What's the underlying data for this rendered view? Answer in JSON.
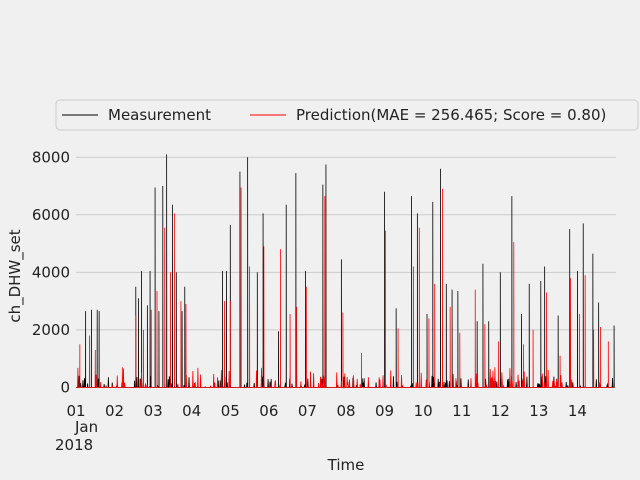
{
  "chart_data": {
    "type": "line",
    "xlabel": "Time",
    "ylabel": "ch_DHW_set",
    "x_tick_labels": [
      "01",
      "02",
      "03",
      "04",
      "05",
      "06",
      "07",
      "08",
      "09",
      "10",
      "11",
      "12",
      "13",
      "14"
    ],
    "x_tick_sublabel_month": "Jan",
    "x_tick_sublabel_year": "2018",
    "x_range_days": [
      1,
      14.95
    ],
    "y_ticks": [
      0,
      2000,
      4000,
      6000,
      8000
    ],
    "ylim": [
      -300,
      8600
    ],
    "grid": true,
    "legend_position": "top",
    "series": [
      {
        "name": "Measurement",
        "color": "#000000",
        "points": [
          [
            1.25,
            2650
          ],
          [
            1.4,
            2700
          ],
          [
            1.55,
            2700
          ],
          [
            1.6,
            2650
          ],
          [
            2.55,
            3500
          ],
          [
            2.62,
            3100
          ],
          [
            2.7,
            4050
          ],
          [
            2.85,
            2850
          ],
          [
            2.92,
            4050
          ],
          [
            3.05,
            6950
          ],
          [
            3.15,
            2650
          ],
          [
            3.25,
            7000
          ],
          [
            3.35,
            8100
          ],
          [
            3.5,
            6350
          ],
          [
            3.6,
            4000
          ],
          [
            3.75,
            2650
          ],
          [
            3.82,
            3500
          ],
          [
            4.8,
            4050
          ],
          [
            4.9,
            4050
          ],
          [
            5.0,
            5650
          ],
          [
            5.25,
            7500
          ],
          [
            5.45,
            8000
          ],
          [
            5.7,
            4000
          ],
          [
            5.85,
            6050
          ],
          [
            6.25,
            1950
          ],
          [
            6.45,
            6350
          ],
          [
            6.7,
            7450
          ],
          [
            6.95,
            4050
          ],
          [
            7.4,
            7050
          ],
          [
            7.48,
            7750
          ],
          [
            7.88,
            4450
          ],
          [
            9.0,
            6800
          ],
          [
            9.3,
            2750
          ],
          [
            9.7,
            6650
          ],
          [
            9.85,
            6050
          ],
          [
            10.1,
            2550
          ],
          [
            10.25,
            6450
          ],
          [
            10.45,
            7600
          ],
          [
            10.6,
            3600
          ],
          [
            10.75,
            3400
          ],
          [
            10.9,
            3350
          ],
          [
            11.4,
            2300
          ],
          [
            11.55,
            4300
          ],
          [
            11.7,
            2300
          ],
          [
            12.0,
            4000
          ],
          [
            12.3,
            6650
          ],
          [
            12.55,
            2550
          ],
          [
            12.75,
            3600
          ],
          [
            13.05,
            3700
          ],
          [
            13.15,
            4200
          ],
          [
            13.5,
            2500
          ],
          [
            13.8,
            5500
          ],
          [
            14.0,
            4050
          ],
          [
            14.15,
            5700
          ],
          [
            14.4,
            4650
          ],
          [
            14.55,
            2950
          ],
          [
            14.95,
            2150
          ]
        ]
      },
      {
        "name": "Prediction(MAE = 256.465; Score = 0.80)",
        "color": "#ff0000",
        "points": [
          [
            1.1,
            1500
          ],
          [
            1.35,
            1800
          ],
          [
            1.5,
            1300
          ],
          [
            2.2,
            700
          ],
          [
            2.55,
            2500
          ],
          [
            2.75,
            2000
          ],
          [
            2.95,
            2700
          ],
          [
            3.1,
            3350
          ],
          [
            3.3,
            5550
          ],
          [
            3.45,
            4000
          ],
          [
            3.55,
            6050
          ],
          [
            3.72,
            3000
          ],
          [
            3.85,
            2900
          ],
          [
            4.85,
            3000
          ],
          [
            5.0,
            3000
          ],
          [
            5.28,
            6950
          ],
          [
            5.5,
            4200
          ],
          [
            5.87,
            4900
          ],
          [
            6.3,
            4800
          ],
          [
            6.55,
            2550
          ],
          [
            6.72,
            2800
          ],
          [
            6.97,
            3500
          ],
          [
            7.45,
            6650
          ],
          [
            7.92,
            2600
          ],
          [
            8.4,
            1200
          ],
          [
            9.02,
            5450
          ],
          [
            9.35,
            2050
          ],
          [
            9.75,
            4200
          ],
          [
            9.9,
            5550
          ],
          [
            10.15,
            2400
          ],
          [
            10.3,
            3600
          ],
          [
            10.5,
            6900
          ],
          [
            10.7,
            2800
          ],
          [
            10.95,
            1900
          ],
          [
            11.35,
            3400
          ],
          [
            11.6,
            2200
          ],
          [
            11.95,
            1600
          ],
          [
            12.35,
            5050
          ],
          [
            12.6,
            1500
          ],
          [
            12.85,
            2000
          ],
          [
            13.2,
            3300
          ],
          [
            13.55,
            1100
          ],
          [
            13.82,
            3800
          ],
          [
            14.05,
            2550
          ],
          [
            14.2,
            3900
          ],
          [
            14.42,
            2000
          ],
          [
            14.6,
            2100
          ],
          [
            14.8,
            1600
          ]
        ]
      }
    ]
  }
}
